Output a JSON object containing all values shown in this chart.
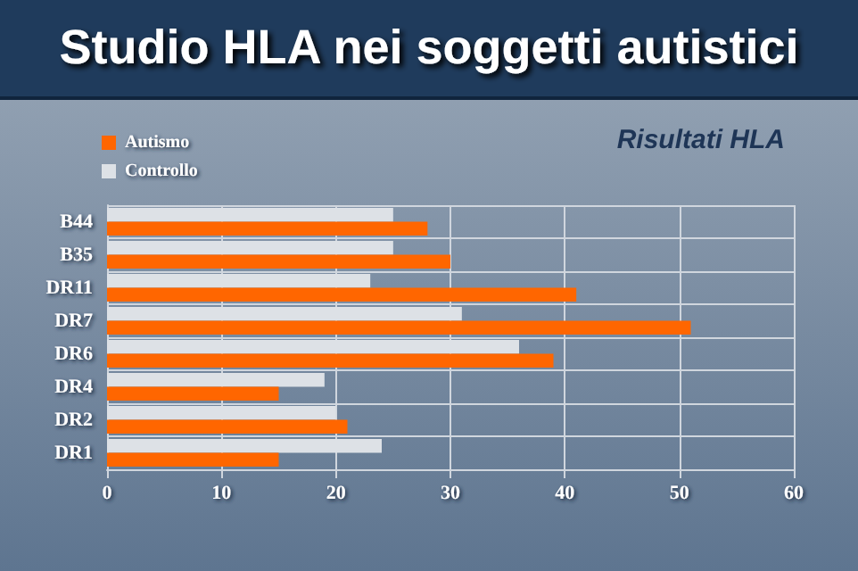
{
  "chart_data": {
    "type": "bar",
    "orientation": "horizontal",
    "title": "Studio HLA nei soggetti autistici",
    "subtitle": "Risultati HLA",
    "categories": [
      "B44",
      "B35",
      "DR11",
      "DR7",
      "DR6",
      "DR4",
      "DR2",
      "DR1"
    ],
    "series": [
      {
        "name": "Autismo",
        "color": "#ff6600",
        "values": [
          28,
          30,
          41,
          51,
          39,
          15,
          21,
          15
        ]
      },
      {
        "name": "Controllo",
        "color": "#dde1e6",
        "values": [
          25,
          25,
          23,
          31,
          36,
          19,
          20,
          24
        ]
      }
    ],
    "xlim": [
      0,
      60
    ],
    "xticks": [
      0,
      10,
      20,
      30,
      40,
      50,
      60
    ],
    "grid": true,
    "legend": "top left"
  }
}
